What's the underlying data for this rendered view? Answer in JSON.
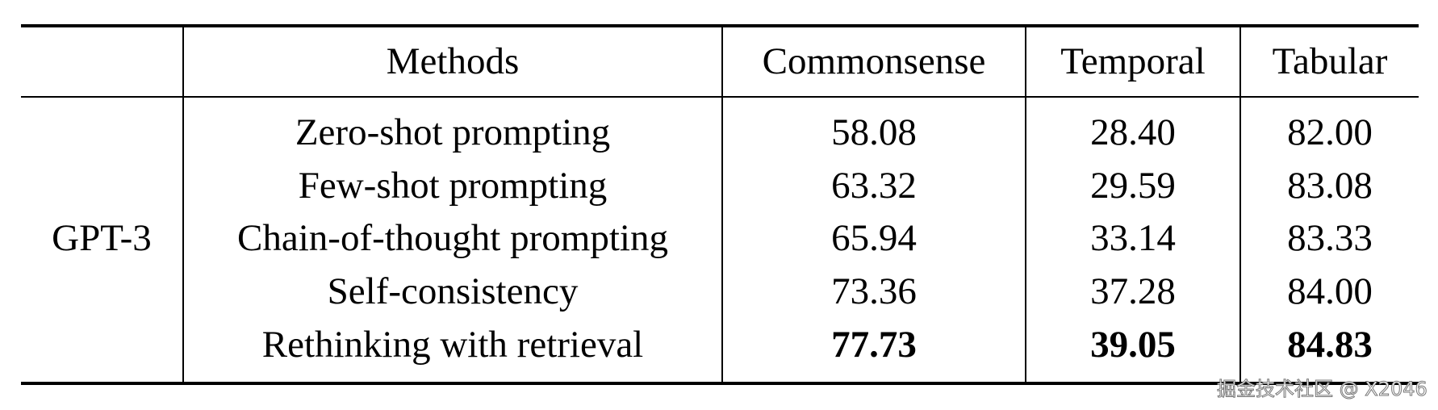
{
  "table": {
    "headers": [
      "",
      "Methods",
      "Commonsense",
      "Temporal",
      "Tabular"
    ],
    "group_label": "GPT-3",
    "rows": [
      {
        "method": "Zero-shot prompting",
        "values": [
          "58.08",
          "28.40",
          "82.00"
        ],
        "bold": false
      },
      {
        "method": "Few-shot prompting",
        "values": [
          "63.32",
          "29.59",
          "83.08"
        ],
        "bold": false
      },
      {
        "method": "Chain-of-thought prompting",
        "values": [
          "65.94",
          "33.14",
          "83.33"
        ],
        "bold": false
      },
      {
        "method": "Self-consistency",
        "values": [
          "73.36",
          "37.28",
          "84.00"
        ],
        "bold": false
      },
      {
        "method": "Rethinking with retrieval",
        "values": [
          "77.73",
          "39.05",
          "84.83"
        ],
        "bold": true
      }
    ]
  },
  "watermark": "掘金技术社区 @ X2046"
}
